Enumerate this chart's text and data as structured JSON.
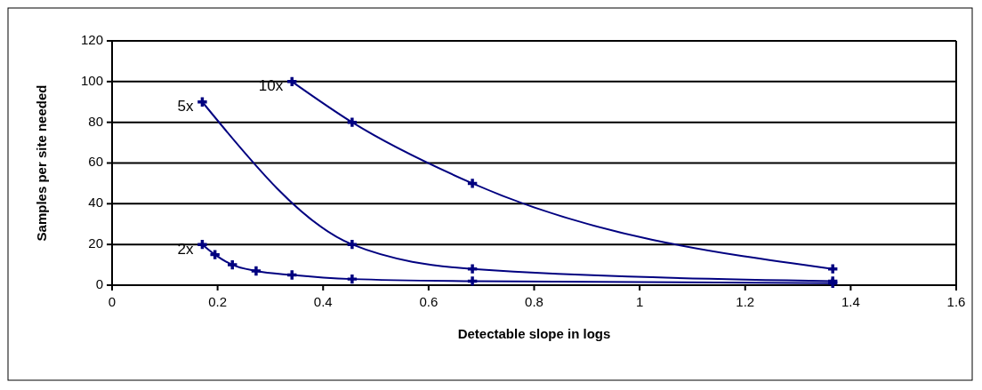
{
  "chart_data": {
    "type": "line",
    "xlabel": "Detectable slope in logs",
    "ylabel": "Samples per site needed",
    "xlim": [
      0,
      1.6
    ],
    "xticks": [
      0,
      0.2,
      0.4,
      0.6,
      0.8,
      1,
      1.2,
      1.4,
      1.6
    ],
    "ylim": [
      0,
      120
    ],
    "yticks": [
      0,
      20,
      40,
      60,
      80,
      100,
      120
    ],
    "grid": "y",
    "marker": "cross",
    "series": [
      {
        "name": "10x",
        "color": "#000080",
        "x": [
          0.341,
          0.455,
          0.683,
          1.366
        ],
        "values": [
          100,
          80,
          50,
          8
        ]
      },
      {
        "name": "5x",
        "color": "#000080",
        "x": [
          0.171,
          0.455,
          0.683,
          1.366
        ],
        "values": [
          90,
          20,
          8,
          2
        ]
      },
      {
        "name": "2x",
        "color": "#000080",
        "x": [
          0.171,
          0.195,
          0.228,
          0.273,
          0.341,
          0.455,
          0.683,
          1.366
        ],
        "values": [
          20,
          15,
          10,
          7,
          5,
          3,
          2,
          1
        ]
      }
    ]
  }
}
